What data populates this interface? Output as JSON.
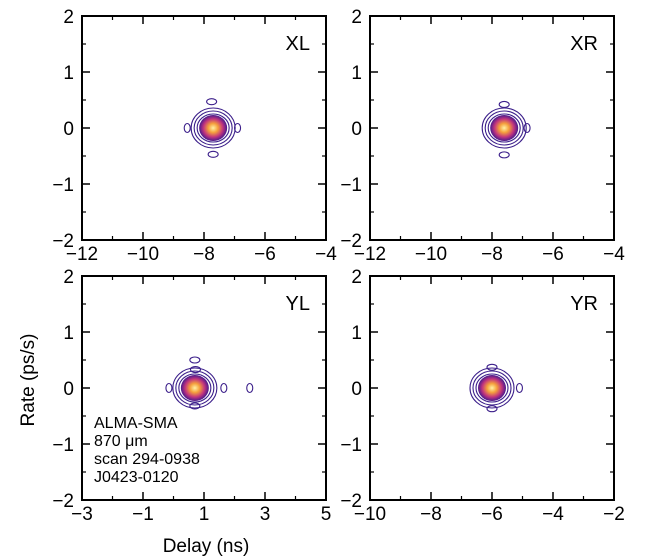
{
  "chart_data": [
    {
      "type": "contour",
      "label": "XL",
      "xlim": [
        -12,
        -4
      ],
      "ylim": [
        -2,
        2
      ],
      "xticks": [
        "−12",
        "−10",
        "−8",
        "−6",
        "−4"
      ],
      "xtick_values": [
        -12,
        -10,
        -8,
        -6,
        -4
      ],
      "yticks": [
        "−2",
        "−1",
        "0",
        "1",
        "2"
      ],
      "ytick_values": [
        -2,
        -1,
        0,
        1,
        2
      ],
      "show_x_labels": true,
      "show_y_labels": true,
      "peak": {
        "x": -7.7,
        "y": 0.0
      },
      "sidelobes": [
        {
          "x": -7.75,
          "y": 0.47
        },
        {
          "x": -7.7,
          "y": -0.47
        },
        {
          "x": -8.55,
          "y": 0.0
        },
        {
          "x": -6.9,
          "y": 0.0
        }
      ]
    },
    {
      "type": "contour",
      "label": "XR",
      "xlim": [
        -12,
        -4
      ],
      "ylim": [
        -2,
        2
      ],
      "xticks": [
        "−12",
        "−10",
        "−8",
        "−6",
        "−4"
      ],
      "xtick_values": [
        -12,
        -10,
        -8,
        -6,
        -4
      ],
      "yticks": [
        "−2",
        "−1",
        "0",
        "1",
        "2"
      ],
      "ytick_values": [
        -2,
        -1,
        0,
        1,
        2
      ],
      "show_x_labels": true,
      "show_y_labels": true,
      "peak": {
        "x": -7.6,
        "y": 0.0
      },
      "sidelobes": [
        {
          "x": -7.6,
          "y": 0.42
        },
        {
          "x": -7.6,
          "y": -0.48
        },
        {
          "x": -6.85,
          "y": 0.0
        }
      ]
    },
    {
      "type": "contour",
      "label": "YL",
      "xlim": [
        -3,
        5
      ],
      "ylim": [
        -2,
        2
      ],
      "xticks": [
        "−3",
        "−1",
        "1",
        "3",
        "5"
      ],
      "xtick_values": [
        -3,
        -1,
        1,
        3,
        5
      ],
      "yticks": [
        "−2",
        "−1",
        "0",
        "1",
        "2"
      ],
      "ytick_values": [
        -2,
        -1,
        0,
        1,
        2
      ],
      "show_x_labels": true,
      "show_y_labels": true,
      "peak": {
        "x": 0.7,
        "y": 0.0
      },
      "sidelobes": [
        {
          "x": 0.7,
          "y": 0.5
        },
        {
          "x": 0.72,
          "y": 0.33
        },
        {
          "x": 0.7,
          "y": -0.32
        },
        {
          "x": -0.15,
          "y": 0.0
        },
        {
          "x": 1.65,
          "y": 0.0
        },
        {
          "x": 2.5,
          "y": 0.0
        }
      ]
    },
    {
      "type": "contour",
      "label": "YR",
      "xlim": [
        -10,
        -2
      ],
      "ylim": [
        -2,
        2
      ],
      "xticks": [
        "−10",
        "−8",
        "−6",
        "−4",
        "−2"
      ],
      "xtick_values": [
        -10,
        -8,
        -6,
        -4,
        -2
      ],
      "yticks": [
        "−2",
        "−1",
        "0",
        "1",
        "2"
      ],
      "ytick_values": [
        -2,
        -1,
        0,
        1,
        2
      ],
      "show_x_labels": true,
      "show_y_labels": true,
      "peak": {
        "x": -6.0,
        "y": 0.0
      },
      "sidelobes": [
        {
          "x": -6.0,
          "y": 0.37
        },
        {
          "x": -6.0,
          "y": -0.37
        },
        {
          "x": -5.1,
          "y": 0.0
        }
      ]
    }
  ],
  "xlabel": "Delay (ns)",
  "ylabel": "Rate (ps/s)",
  "annotation": [
    "ALMA-SMA",
    "870 μm",
    "scan 294-0938",
    "J0423-0120"
  ],
  "colors": {
    "contour": "#3b1e8a",
    "core_inner": "#fff2a6",
    "core_mid": "#f5a03c",
    "core_outer": "#c2347e",
    "core_edge": "#4a1a8c"
  }
}
